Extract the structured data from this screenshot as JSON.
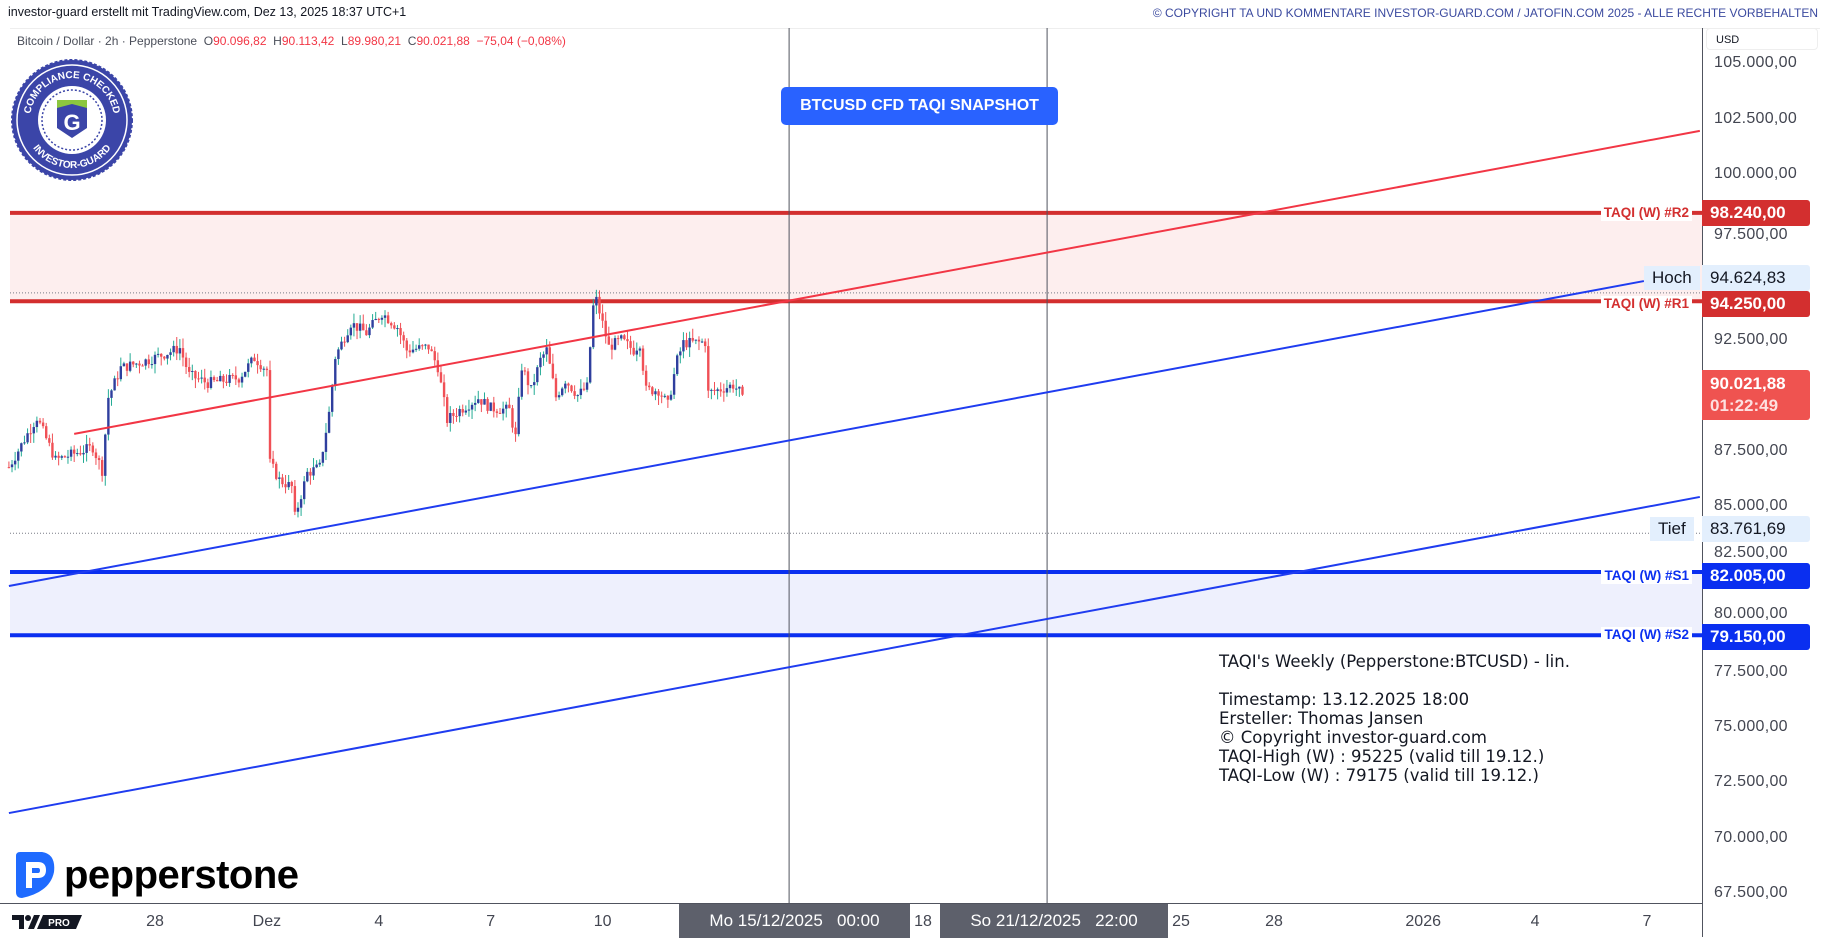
{
  "header": {
    "left_text": "investor-guard erstellt mit TradingView.com, Dez 13, 2025 18:37 UTC+1",
    "right_text": "© COPYRIGHT TA UND KOMMENTARE INVESTOR-GUARD.COM / JATOFIN.COM 2025 - ALLE RECHTE VORBEHALTEN"
  },
  "legend": {
    "symbol": "Bitcoin / Dollar · 2h · Pepperstone",
    "open_label": "O",
    "open": "90.096,82",
    "high_label": "H",
    "high": "90.113,42",
    "low_label": "L",
    "low": "89.980,21",
    "close_label": "C",
    "close": "90.021,88",
    "change": "−75,04 (−0,08%)"
  },
  "seal": {
    "text_top": "COMPLIANCE CHECKED",
    "text_bottom": "INVESTOR-GUARD",
    "letter": "G"
  },
  "snapshot_button": "BTCUSD CFD TAQI SNAPSHOT",
  "currency_button": "USD",
  "broker_logo": "pepperstone",
  "tv_logo": {
    "badge": "PRO"
  },
  "info_box": {
    "title": "TAQI's Weekly (Pepperstone:BTCUSD) - lin.",
    "timestamp": "Timestamp: 13.12.2025 18:00",
    "author": "Ersteller: Thomas Jansen",
    "copyright": "© Copyright investor-guard.com",
    "high": "TAQI-High (W) : 95225 (valid till 19.12.)",
    "low": "TAQI-Low (W) : 79175 (valid till 19.12.)"
  },
  "colors": {
    "up_body": "#2f3f9e",
    "up_wick": "#22ab94",
    "down": "#f05056",
    "resistance": "#d32f2f",
    "support": "#0a2ff0",
    "resistance_zone": "#fdeeee",
    "support_zone": "#eef0fd",
    "red_trend": "#f23645",
    "blue_trend": "#1f3cf0",
    "last_price": "#ef5350"
  },
  "chart_data": {
    "type": "candlestick",
    "symbol": "BTCUSD",
    "interval": "2h",
    "ylim": [
      66500,
      106000
    ],
    "y_ticks": [
      {
        "value": 105000,
        "label": "105.000,00"
      },
      {
        "value": 102500,
        "label": "102.500,00"
      },
      {
        "value": 100000,
        "label": "100.000,00"
      },
      {
        "value": 97500,
        "label": "97.500,00"
      },
      {
        "value": 92500,
        "label": "92.500,00"
      },
      {
        "value": 87500,
        "label": "87.500,00"
      },
      {
        "value": 85000,
        "label": "85.000,00"
      },
      {
        "value": 82500,
        "label": "82.500,00"
      },
      {
        "value": 80000,
        "label": "80.000,00"
      },
      {
        "value": 77500,
        "label": "77.500,00"
      },
      {
        "value": 75000,
        "label": "75.000,00"
      },
      {
        "value": 72500,
        "label": "72.500,00"
      },
      {
        "value": 70000,
        "label": "70.000,00"
      },
      {
        "value": 67500,
        "label": "67.500,00"
      }
    ],
    "x_ticks": [
      {
        "date": "2025-11-28",
        "label": "28"
      },
      {
        "date": "2025-12-01",
        "label": "Dez"
      },
      {
        "date": "2025-12-04",
        "label": "4"
      },
      {
        "date": "2025-12-07",
        "label": "7"
      },
      {
        "date": "2025-12-10",
        "label": "10"
      },
      {
        "date": "2025-12-18",
        "label": "18"
      },
      {
        "date": "2025-12-25",
        "label": "25"
      },
      {
        "date": "2025-12-28",
        "label": "28"
      },
      {
        "date": "2026-01-01",
        "label": "2026"
      },
      {
        "date": "2026-01-04",
        "label": "4"
      },
      {
        "date": "2026-01-07",
        "label": "7"
      }
    ],
    "price_path": [
      [
        "2025-11-24 02:00",
        86750
      ],
      [
        "2025-11-24 20:00",
        89000
      ],
      [
        "2025-11-25 08:00",
        87070
      ],
      [
        "2025-11-26 08:00",
        87650
      ],
      [
        "2025-11-26 14:00",
        86600
      ],
      [
        "2025-11-26 18:00",
        89900
      ],
      [
        "2025-11-27 02:00",
        91230
      ],
      [
        "2025-11-27 20:00",
        91600
      ],
      [
        "2025-11-28 16:00",
        92130
      ],
      [
        "2025-11-28 22:00",
        90910
      ],
      [
        "2025-11-29 10:00",
        90550
      ],
      [
        "2025-11-30 06:00",
        90780
      ],
      [
        "2025-11-30 16:00",
        91680
      ],
      [
        "2025-12-01 00:00",
        91140
      ],
      [
        "2025-12-01 02:00",
        86930
      ],
      [
        "2025-12-01 08:00",
        86170
      ],
      [
        "2025-12-01 16:00",
        85850
      ],
      [
        "2025-12-01 18:00",
        84500
      ],
      [
        "2025-12-02 02:00",
        86480
      ],
      [
        "2025-12-02 10:00",
        86750
      ],
      [
        "2025-12-02 16:00",
        89190
      ],
      [
        "2025-12-02 20:00",
        91730
      ],
      [
        "2025-12-03 06:00",
        93260
      ],
      [
        "2025-12-03 16:00",
        92810
      ],
      [
        "2025-12-04 02:00",
        93720
      ],
      [
        "2025-12-04 12:00",
        93080
      ],
      [
        "2025-12-04 18:00",
        92040
      ],
      [
        "2025-12-05 08:00",
        92180
      ],
      [
        "2025-12-05 14:00",
        91280
      ],
      [
        "2025-12-05 20:00",
        88880
      ],
      [
        "2025-12-06 04:00",
        89330
      ],
      [
        "2025-12-06 16:00",
        89870
      ],
      [
        "2025-12-07 00:00",
        89420
      ],
      [
        "2025-12-07 12:00",
        89330
      ],
      [
        "2025-12-07 16:00",
        88110
      ],
      [
        "2025-12-07 20:00",
        91280
      ],
      [
        "2025-12-08 02:00",
        90230
      ],
      [
        "2025-12-08 08:00",
        91590
      ],
      [
        "2025-12-08 12:00",
        92040
      ],
      [
        "2025-12-08 18:00",
        89920
      ],
      [
        "2025-12-09 00:00",
        90690
      ],
      [
        "2025-12-09 08:00",
        90000
      ],
      [
        "2025-12-09 14:00",
        90370
      ],
      [
        "2025-12-09 18:00",
        93990
      ],
      [
        "2025-12-09 20:00",
        94300
      ],
      [
        "2025-12-10 04:00",
        92180
      ],
      [
        "2025-12-10 12:00",
        92500
      ],
      [
        "2025-12-10 20:00",
        92040
      ],
      [
        "2025-12-11 00:00",
        92360
      ],
      [
        "2025-12-11 04:00",
        90230
      ],
      [
        "2025-12-11 12:00",
        90230
      ],
      [
        "2025-12-11 18:00",
        89560
      ],
      [
        "2025-12-12 00:00",
        91590
      ],
      [
        "2025-12-12 04:00",
        92360
      ],
      [
        "2025-12-12 18:00",
        92400
      ],
      [
        "2025-12-12 20:00",
        90100
      ],
      [
        "2025-12-13 06:00",
        90320
      ],
      [
        "2025-12-13 12:00",
        90460
      ],
      [
        "2025-12-13 18:00",
        90021.88
      ]
    ],
    "trend_lines": [
      {
        "color": "red_trend",
        "p1": [
          "2025-11-25 20:00",
          88250
        ],
        "p2": [
          "2026-01-08 10:00",
          101950
        ]
      },
      {
        "color": "blue_trend",
        "p1": [
          "2025-11-24 02:00",
          81375
        ],
        "p2": [
          "2026-01-06 22:00",
          95160
        ]
      },
      {
        "color": "blue_trend",
        "p1": [
          "2025-11-24 02:00",
          71110
        ],
        "p2": [
          "2026-01-08 10:00",
          85400
        ]
      }
    ],
    "vertical_markers": [
      "2025-12-15 00:00",
      "2025-12-21 22:00"
    ]
  },
  "levels": {
    "r2": {
      "label": "TAQI (W) #R2",
      "price": 98240,
      "price_label": "98.240,00"
    },
    "r1": {
      "label": "TAQI (W) #R1",
      "price": 94250,
      "price_label": "94.250,00"
    },
    "s1": {
      "label": "TAQI (W) #S1",
      "price": 82005,
      "price_label": "82.005,00"
    },
    "s2": {
      "label": "TAQI (W) #S2",
      "price": 79150,
      "price_label": "79.150,00"
    },
    "high": {
      "tag": "Hoch",
      "price": 94624.83,
      "price_label": "94.624,83"
    },
    "low": {
      "tag": "Tief",
      "price": 83761.69,
      "price_label": "83.761,69"
    },
    "last": {
      "price": 90021.88,
      "price_label": "90.021,88",
      "countdown": "01:22:49"
    }
  },
  "crosshair": {
    "x1_label": "Mo 15/12/2025   00:00",
    "x2_label": "So 21/12/2025   22:00"
  }
}
